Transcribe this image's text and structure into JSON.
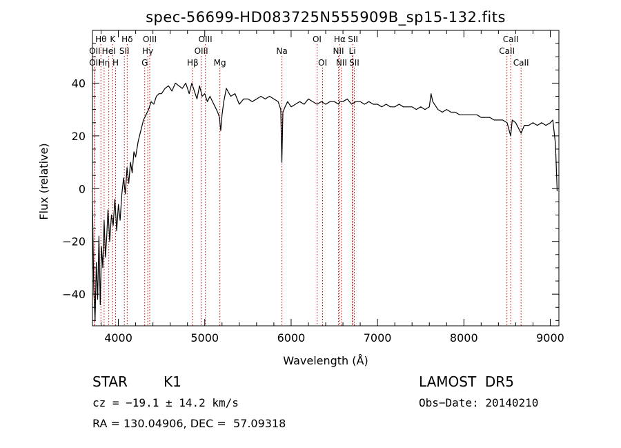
{
  "chart_data": {
    "type": "line",
    "title": "spec-56699-HD083725N555909B_sp15-132.fits",
    "xlabel": "Wavelength (Å)",
    "ylabel": "Flux (relative)",
    "xlim": [
      3700,
      9100
    ],
    "ylim": [
      -52,
      60
    ],
    "x_ticks": [
      4000,
      5000,
      6000,
      7000,
      8000,
      9000
    ],
    "y_ticks": [
      -40,
      -20,
      0,
      20,
      40
    ],
    "grid": false,
    "line_color": "#000000",
    "marker_color": "#cc0000",
    "series": [
      {
        "x": [
          3700,
          3715,
          3730,
          3745,
          3760,
          3775,
          3790,
          3805,
          3820,
          3835,
          3850,
          3865,
          3880,
          3900,
          3920,
          3940,
          3960,
          3980,
          4000,
          4020,
          4040,
          4060,
          4080,
          4100,
          4120,
          4140,
          4160,
          4180,
          4200,
          4230,
          4260,
          4290,
          4320,
          4350,
          4380,
          4410,
          4440,
          4470,
          4500,
          4540,
          4580,
          4620,
          4660,
          4700,
          4740,
          4780,
          4820,
          4850,
          4880,
          4910,
          4940,
          4970,
          5000,
          5030,
          5060,
          5090,
          5120,
          5150,
          5170,
          5185,
          5200,
          5220,
          5250,
          5300,
          5350,
          5400,
          5450,
          5500,
          5550,
          5600,
          5650,
          5700,
          5750,
          5800,
          5850,
          5880,
          5893,
          5905,
          5930,
          5960,
          6000,
          6050,
          6100,
          6150,
          6200,
          6250,
          6300,
          6350,
          6400,
          6450,
          6500,
          6550,
          6563,
          6600,
          6650,
          6700,
          6750,
          6800,
          6850,
          6900,
          6950,
          7000,
          7050,
          7100,
          7150,
          7200,
          7250,
          7300,
          7350,
          7400,
          7450,
          7500,
          7550,
          7600,
          7620,
          7640,
          7680,
          7700,
          7750,
          7800,
          7850,
          7900,
          7950,
          8000,
          8050,
          8100,
          8150,
          8200,
          8250,
          8300,
          8350,
          8400,
          8450,
          8500,
          8542,
          8560,
          8600,
          8662,
          8700,
          8750,
          8800,
          8850,
          8900,
          8950,
          9000,
          9030,
          9060,
          9080
        ],
        "y": [
          -5,
          -38,
          -50,
          -28,
          -42,
          -18,
          -44,
          -22,
          -30,
          -12,
          -26,
          -18,
          -8,
          -20,
          -10,
          -14,
          -4,
          -16,
          -6,
          -12,
          -2,
          4,
          -2,
          8,
          2,
          10,
          6,
          14,
          12,
          18,
          22,
          26,
          28,
          30,
          33,
          32,
          35,
          36,
          36,
          38,
          39,
          37,
          40,
          39,
          38,
          40,
          36,
          40,
          37,
          34,
          39,
          35,
          36,
          33,
          35,
          33,
          31,
          29,
          27,
          22,
          28,
          33,
          38,
          35,
          36,
          32,
          34,
          34,
          33,
          34,
          35,
          34,
          35,
          34,
          33,
          30,
          10,
          29,
          31,
          33,
          31,
          32,
          33,
          32,
          34,
          33,
          32,
          33,
          32,
          33,
          33,
          32,
          33,
          33,
          34,
          32,
          33,
          33,
          32,
          33,
          32,
          32,
          31,
          32,
          31,
          31,
          32,
          31,
          31,
          31,
          30,
          31,
          30,
          31,
          36,
          33,
          31,
          30,
          29,
          30,
          29,
          29,
          28,
          28,
          28,
          28,
          28,
          27,
          27,
          27,
          26,
          26,
          26,
          25,
          20,
          26,
          25,
          21,
          24,
          24,
          25,
          24,
          25,
          24,
          25,
          26,
          17,
          -1
        ]
      }
    ],
    "line_markers": [
      {
        "name": "Hθ",
        "x": 3798,
        "row": 1
      },
      {
        "name": "OII",
        "x": 3727,
        "row": 2
      },
      {
        "name": "OII",
        "x": 3727,
        "row": 3
      },
      {
        "name": "Hη",
        "x": 3835,
        "row": 3
      },
      {
        "name": "K",
        "x": 3934,
        "row": 1
      },
      {
        "name": "HeI",
        "x": 3889,
        "row": 2
      },
      {
        "name": "H",
        "x": 3968,
        "row": 3
      },
      {
        "name": "Hδ",
        "x": 4102,
        "row": 1
      },
      {
        "name": "SII",
        "x": 4069,
        "row": 2
      },
      {
        "name": "OIII",
        "x": 4363,
        "row": 1
      },
      {
        "name": "Hγ",
        "x": 4340,
        "row": 2
      },
      {
        "name": "G",
        "x": 4305,
        "row": 3
      },
      {
        "name": "OIII",
        "x": 5007,
        "row": 1
      },
      {
        "name": "OIII",
        "x": 4959,
        "row": 2
      },
      {
        "name": "Hβ",
        "x": 4861,
        "row": 3
      },
      {
        "name": "Mg",
        "x": 5175,
        "row": 3
      },
      {
        "name": "Na",
        "x": 5893,
        "row": 2
      },
      {
        "name": "OI",
        "x": 6300,
        "row": 1
      },
      {
        "name": "OI",
        "x": 6364,
        "row": 3
      },
      {
        "name": "Hα",
        "x": 6563,
        "row": 1
      },
      {
        "name": "SII",
        "x": 6716,
        "row": 1
      },
      {
        "name": "NII",
        "x": 6548,
        "row": 2
      },
      {
        "name": "Li",
        "x": 6708,
        "row": 2
      },
      {
        "name": "NII",
        "x": 6583,
        "row": 3
      },
      {
        "name": "SII",
        "x": 6731,
        "row": 3
      },
      {
        "name": "CaII",
        "x": 8542,
        "row": 1
      },
      {
        "name": "CaII",
        "x": 8498,
        "row": 2
      },
      {
        "name": "CaII",
        "x": 8662,
        "row": 3
      }
    ]
  },
  "footer": {
    "object_class": "STAR",
    "subclass": "K1",
    "survey": "LAMOST  DR5",
    "redshift": "cz = −19.1 ± 14.2 km/s",
    "obs_date": "Obs−Date: 20140210",
    "coords": "RA = 130.04906, DEC =  57.09318"
  }
}
